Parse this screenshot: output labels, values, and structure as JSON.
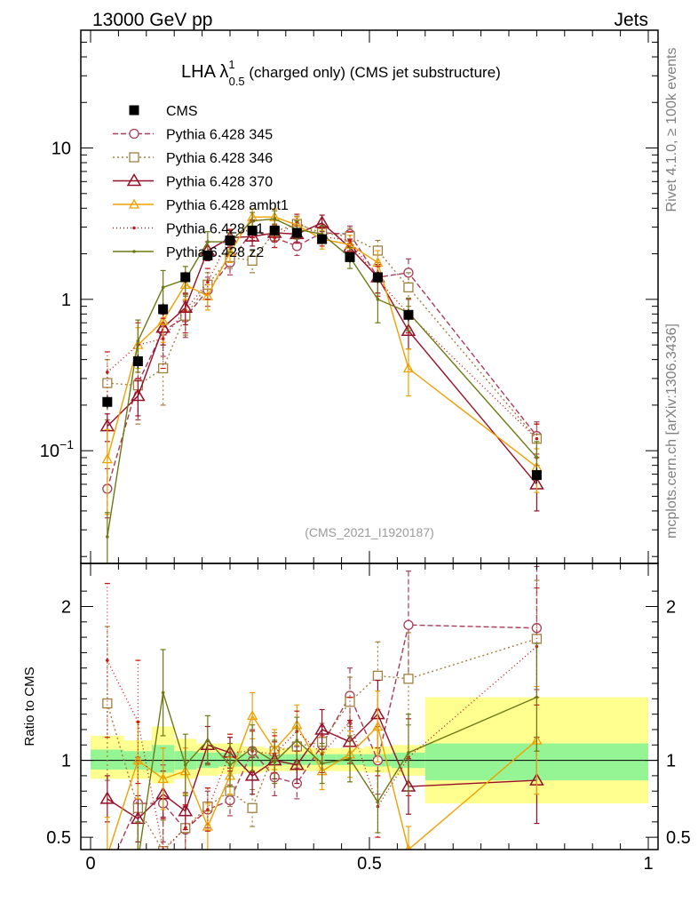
{
  "header": {
    "left": "13000 GeV pp",
    "right": "Jets"
  },
  "side": {
    "rivet": "Rivet 4.1.0, ≥ 100k events",
    "mcplots": "mcplots.cern.ch [arXiv:1306.3436]"
  },
  "chart_data": {
    "type": "line",
    "title_main": "LHA λ",
    "title_sup": "1",
    "title_sub": "0.5",
    "title_rest": " (charged only) (CMS jet substructure)",
    "analysis_label": "(CMS_2021_I1920187)",
    "ratio_ylabel": "Ratio to CMS",
    "main_yscale": "log",
    "main_ylim": [
      0.018,
      60
    ],
    "ratio_ylim": [
      0.42,
      2.28
    ],
    "xlim": [
      -0.02,
      1.0
    ],
    "main_yticks": [
      {
        "value": 0.1,
        "base": "10",
        "exp": "−1"
      },
      {
        "value": 1,
        "label": "1"
      },
      {
        "value": 10,
        "label": "10"
      }
    ],
    "ratio_yticks": [
      {
        "value": 0.5,
        "label": "0.5"
      },
      {
        "value": 1,
        "label": "1"
      },
      {
        "value": 2,
        "label": "2"
      }
    ],
    "xticks": [
      {
        "value": 0,
        "label": "0"
      },
      {
        "value": 0.5,
        "label": "0.5"
      },
      {
        "value": 1,
        "label": "1"
      }
    ],
    "x": [
      0.03,
      0.085,
      0.13,
      0.17,
      0.21,
      0.25,
      0.29,
      0.33,
      0.37,
      0.415,
      0.465,
      0.515,
      0.57,
      0.8
    ],
    "bin_edges": [
      0.0,
      0.06,
      0.11,
      0.15,
      0.19,
      0.23,
      0.27,
      0.31,
      0.35,
      0.39,
      0.44,
      0.49,
      0.54,
      0.6,
      1.0
    ],
    "band_outer_hi": [
      1.16,
      1.13,
      1.22,
      1.14,
      1.11,
      1.11,
      1.09,
      1.08,
      1.08,
      1.08,
      1.08,
      1.09,
      1.1,
      1.41
    ],
    "band_outer_lo": [
      0.88,
      0.88,
      0.85,
      0.88,
      0.9,
      0.91,
      0.92,
      0.93,
      0.93,
      0.93,
      0.93,
      0.92,
      0.9,
      0.72
    ],
    "band_inner_hi": [
      1.07,
      1.06,
      1.1,
      1.06,
      1.05,
      1.05,
      1.04,
      1.04,
      1.04,
      1.04,
      1.04,
      1.04,
      1.05,
      1.11
    ],
    "band_inner_lo": [
      0.94,
      0.94,
      0.92,
      0.94,
      0.95,
      0.96,
      0.96,
      0.97,
      0.97,
      0.97,
      0.97,
      0.96,
      0.95,
      0.87
    ],
    "series": [
      {
        "name": "CMS",
        "color": "#000000",
        "marker": "square",
        "dash": "",
        "values": [
          0.21,
          0.39,
          0.86,
          1.4,
          1.95,
          2.45,
          2.85,
          2.85,
          2.75,
          2.5,
          1.9,
          1.4,
          0.79,
          0.069
        ],
        "err_lo": [
          0.02,
          0.04,
          0.08,
          0.12,
          0.15,
          0.18,
          0.2,
          0.2,
          0.2,
          0.18,
          0.15,
          0.12,
          0.07,
          0.008
        ],
        "err_hi": [
          0.02,
          0.04,
          0.08,
          0.12,
          0.15,
          0.18,
          0.2,
          0.2,
          0.2,
          0.18,
          0.15,
          0.12,
          0.07,
          0.008
        ],
        "ratio": []
      },
      {
        "name": "Pythia 6.428 345",
        "color": "#a83c58",
        "marker": "circle",
        "dash": "6,3",
        "values": [
          0.056,
          0.28,
          0.62,
          0.76,
          1.15,
          1.75,
          2.85,
          2.55,
          2.25,
          2.75,
          2.7,
          1.4,
          1.5,
          0.125
        ],
        "err_lo": [
          0.02,
          0.12,
          0.2,
          0.2,
          0.25,
          0.3,
          0.4,
          0.35,
          0.3,
          0.35,
          0.35,
          0.3,
          0.35,
          0.03
        ],
        "err_hi": [
          0.02,
          0.12,
          0.2,
          0.2,
          0.25,
          0.3,
          0.4,
          0.35,
          0.3,
          0.35,
          0.35,
          0.3,
          0.35,
          0.03
        ],
        "ratio": [
          0.27,
          0.72,
          0.72,
          0.55,
          0.68,
          0.74,
          1.06,
          0.89,
          0.85,
          1.1,
          1.42,
          1.0,
          1.88,
          1.86
        ],
        "ratio_err": [
          0.1,
          0.3,
          0.25,
          0.15,
          0.12,
          0.1,
          0.14,
          0.12,
          0.1,
          0.12,
          0.18,
          0.22,
          0.35,
          0.4
        ]
      },
      {
        "name": "Pythia 6.428 346",
        "color": "#a08040",
        "marker": "square-open",
        "dash": "2,3",
        "values": [
          0.28,
          0.27,
          0.35,
          0.78,
          1.25,
          1.9,
          1.8,
          2.8,
          3.15,
          2.75,
          2.6,
          2.1,
          1.2,
          0.12
        ],
        "err_lo": [
          0.12,
          0.12,
          0.15,
          0.2,
          0.25,
          0.3,
          0.3,
          0.35,
          0.4,
          0.35,
          0.35,
          0.35,
          0.3,
          0.03
        ],
        "err_hi": [
          0.12,
          0.12,
          0.15,
          0.2,
          0.25,
          0.3,
          0.3,
          0.35,
          0.4,
          0.35,
          0.35,
          0.35,
          0.3,
          0.03
        ],
        "ratio": [
          1.37,
          0.69,
          0.41,
          0.56,
          0.7,
          0.8,
          0.69,
          1.06,
          1.09,
          1.12,
          1.38,
          1.55,
          1.53,
          1.79
        ],
        "ratio_err": [
          0.5,
          0.3,
          0.2,
          0.15,
          0.12,
          0.1,
          0.12,
          0.12,
          0.12,
          0.12,
          0.16,
          0.22,
          0.3,
          0.38
        ]
      },
      {
        "name": "Pythia 6.428 370",
        "color": "#960f28",
        "marker": "triangle-open",
        "dash": "",
        "values": [
          0.145,
          0.23,
          0.65,
          0.88,
          2.1,
          2.55,
          2.6,
          2.75,
          2.7,
          3.2,
          2.2,
          1.4,
          0.62,
          0.06
        ],
        "err_lo": [
          0.03,
          0.06,
          0.15,
          0.2,
          0.3,
          0.3,
          0.35,
          0.35,
          0.35,
          0.4,
          0.3,
          0.3,
          0.15,
          0.02
        ],
        "err_hi": [
          0.03,
          0.06,
          0.15,
          0.2,
          0.3,
          0.3,
          0.35,
          0.35,
          0.35,
          0.4,
          0.3,
          0.3,
          0.15,
          0.02
        ],
        "ratio": [
          0.75,
          0.62,
          0.78,
          0.67,
          1.1,
          1.05,
          0.9,
          1.0,
          0.97,
          1.2,
          1.12,
          1.3,
          0.83,
          0.87
        ],
        "ratio_err": [
          0.15,
          0.15,
          0.15,
          0.12,
          0.12,
          0.1,
          0.12,
          0.12,
          0.12,
          0.13,
          0.14,
          0.22,
          0.18,
          0.28
        ]
      },
      {
        "name": "Pythia 6.428 ambt1",
        "color": "#f0a000",
        "marker": "triangle-open-small",
        "dash": "",
        "values": [
          0.088,
          0.5,
          0.72,
          1.25,
          1.05,
          2.05,
          3.5,
          3.5,
          3.1,
          2.5,
          2.3,
          1.75,
          0.35,
          0.078
        ],
        "err_lo": [
          0.05,
          0.15,
          0.2,
          0.25,
          0.2,
          0.3,
          0.45,
          0.45,
          0.4,
          0.35,
          0.35,
          0.35,
          0.12,
          0.025
        ],
        "err_hi": [
          0.05,
          0.15,
          0.2,
          0.25,
          0.2,
          0.3,
          0.45,
          0.45,
          0.4,
          0.35,
          0.35,
          0.35,
          0.12,
          0.025
        ],
        "ratio": [
          0.38,
          1.0,
          0.88,
          0.93,
          0.57,
          0.9,
          1.29,
          1.07,
          1.23,
          0.93,
          1.04,
          1.22,
          0.42,
          1.13
        ],
        "ratio_err": [
          0.25,
          0.25,
          0.2,
          0.15,
          0.15,
          0.12,
          0.15,
          0.13,
          0.13,
          0.12,
          0.15,
          0.23,
          0.15,
          0.35
        ]
      },
      {
        "name": "Pythia 6.428 z1",
        "color": "#c81818",
        "marker": "dot",
        "dash": "1,3",
        "values": [
          0.33,
          0.5,
          0.55,
          0.85,
          1.3,
          2.55,
          2.95,
          2.55,
          3.25,
          2.6,
          2.45,
          1.35,
          0.8,
          0.12
        ],
        "err_lo": [
          0.12,
          0.2,
          0.2,
          0.25,
          0.3,
          0.35,
          0.4,
          0.35,
          0.4,
          0.35,
          0.35,
          0.3,
          0.2,
          0.03
        ],
        "err_hi": [
          0.12,
          0.2,
          0.2,
          0.25,
          0.3,
          0.35,
          0.4,
          0.35,
          0.4,
          0.35,
          0.35,
          0.3,
          0.2,
          0.03
        ],
        "ratio": [
          1.65,
          1.25,
          0.42,
          0.56,
          0.68,
          1.05,
          1.06,
          1.04,
          1.19,
          1.04,
          1.25,
          0.7,
          1.02,
          1.74
        ],
        "ratio_err": [
          0.5,
          0.4,
          0.2,
          0.15,
          0.14,
          0.12,
          0.13,
          0.12,
          0.13,
          0.12,
          0.16,
          0.2,
          0.25,
          0.38
        ]
      },
      {
        "name": "Pythia 6.428 z2",
        "color": "#6e7814",
        "marker": "dot",
        "dash": "",
        "values": [
          0.027,
          0.53,
          1.2,
          1.35,
          2.4,
          2.4,
          3.3,
          3.4,
          2.9,
          2.7,
          1.9,
          1.0,
          0.82,
          0.09
        ],
        "err_lo": [
          0.012,
          0.2,
          0.35,
          0.3,
          0.4,
          0.35,
          0.45,
          0.45,
          0.4,
          0.35,
          0.3,
          0.3,
          0.2,
          0.025
        ],
        "err_hi": [
          0.012,
          0.2,
          0.35,
          0.3,
          0.4,
          0.35,
          0.45,
          0.45,
          0.4,
          0.35,
          0.3,
          0.3,
          0.2,
          0.025
        ],
        "ratio": [
          0.13,
          0.35,
          1.44,
          0.97,
          1.13,
          0.97,
          1.08,
          0.99,
          1.13,
          0.98,
          1.01,
          0.73,
          1.05,
          1.41
        ],
        "ratio_err": [
          0.08,
          0.25,
          0.28,
          0.2,
          0.16,
          0.14,
          0.15,
          0.14,
          0.15,
          0.13,
          0.15,
          0.2,
          0.25,
          0.35
        ]
      }
    ]
  }
}
